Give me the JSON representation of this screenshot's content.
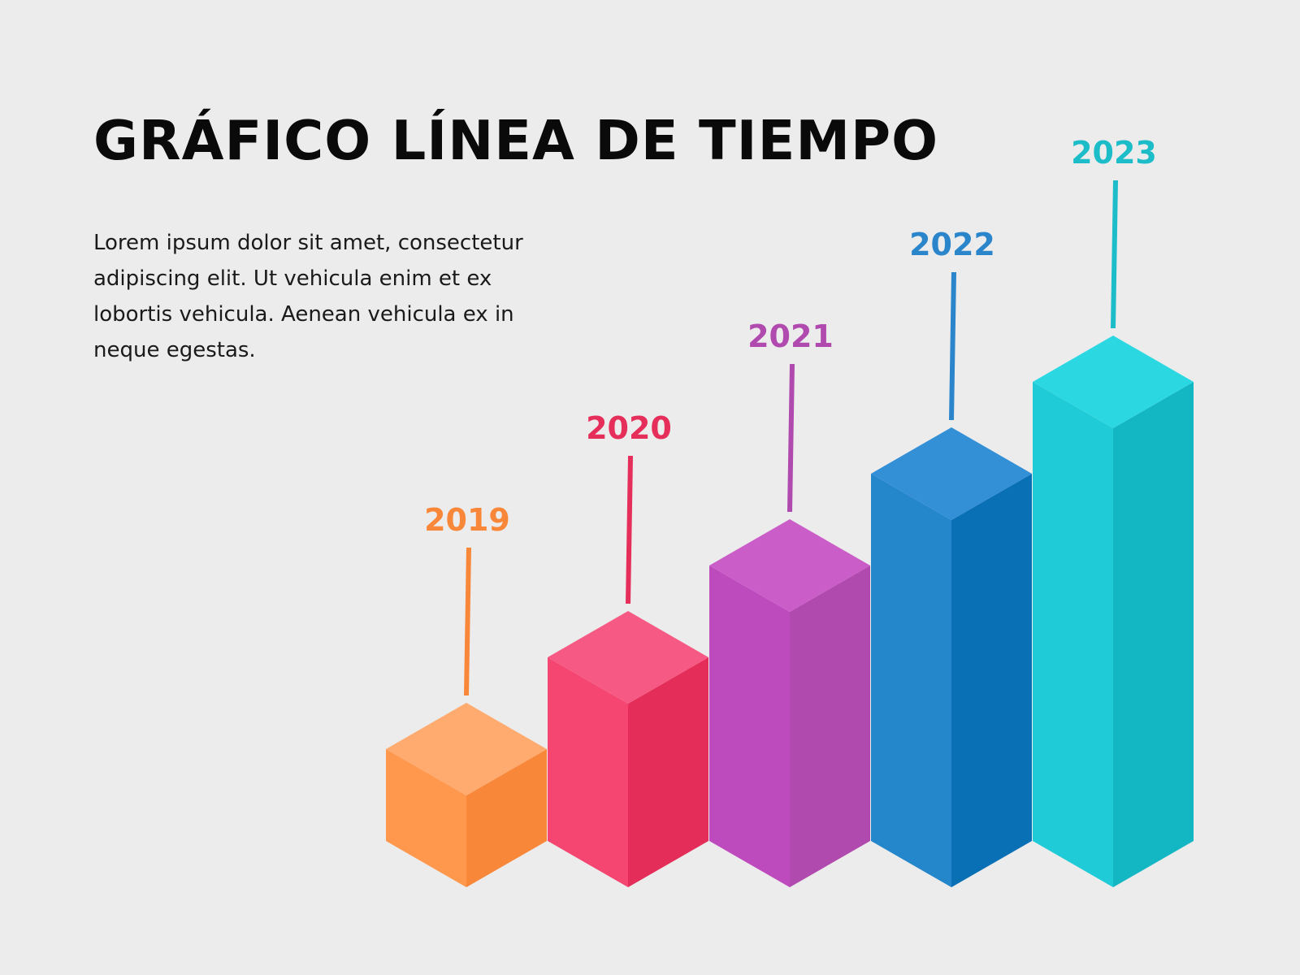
{
  "header": {
    "title": "GRÁFICO LÍNEA DE TIEMPO",
    "description": "Lorem ipsum dolor sit amet, consectetur adipiscing elit. Ut vehicula enim et ex lobortis vehicula. Aenean vehicula ex in neque egestas."
  },
  "chart_data": {
    "type": "bar",
    "style": "isometric-3d",
    "title": "GRÁFICO LÍNEA DE TIEMPO",
    "xlabel": "",
    "ylabel": "",
    "grid": false,
    "legend": "none",
    "categories": [
      "2019",
      "2020",
      "2021",
      "2022",
      "2023"
    ],
    "values": [
      1,
      2,
      3,
      4,
      5
    ],
    "colors": [
      "#f9873a",
      "#e62e5a",
      "#b04aae",
      "#2a85cb",
      "#1cbcc9"
    ],
    "face_colors": [
      {
        "top": "#ffab6f",
        "left": "#ff974c",
        "right": "#f9873a"
      },
      {
        "top": "#f65a84",
        "left": "#f44670",
        "right": "#e42e59"
      },
      {
        "top": "#cb5dc8",
        "left": "#be4bbd",
        "right": "#b04aae"
      },
      {
        "top": "#338fd6",
        "left": "#2486cb",
        "right": "#0a70b6"
      },
      {
        "top": "#2bd8e2",
        "left": "#1ecbd6",
        "right": "#13b7c4"
      }
    ]
  }
}
